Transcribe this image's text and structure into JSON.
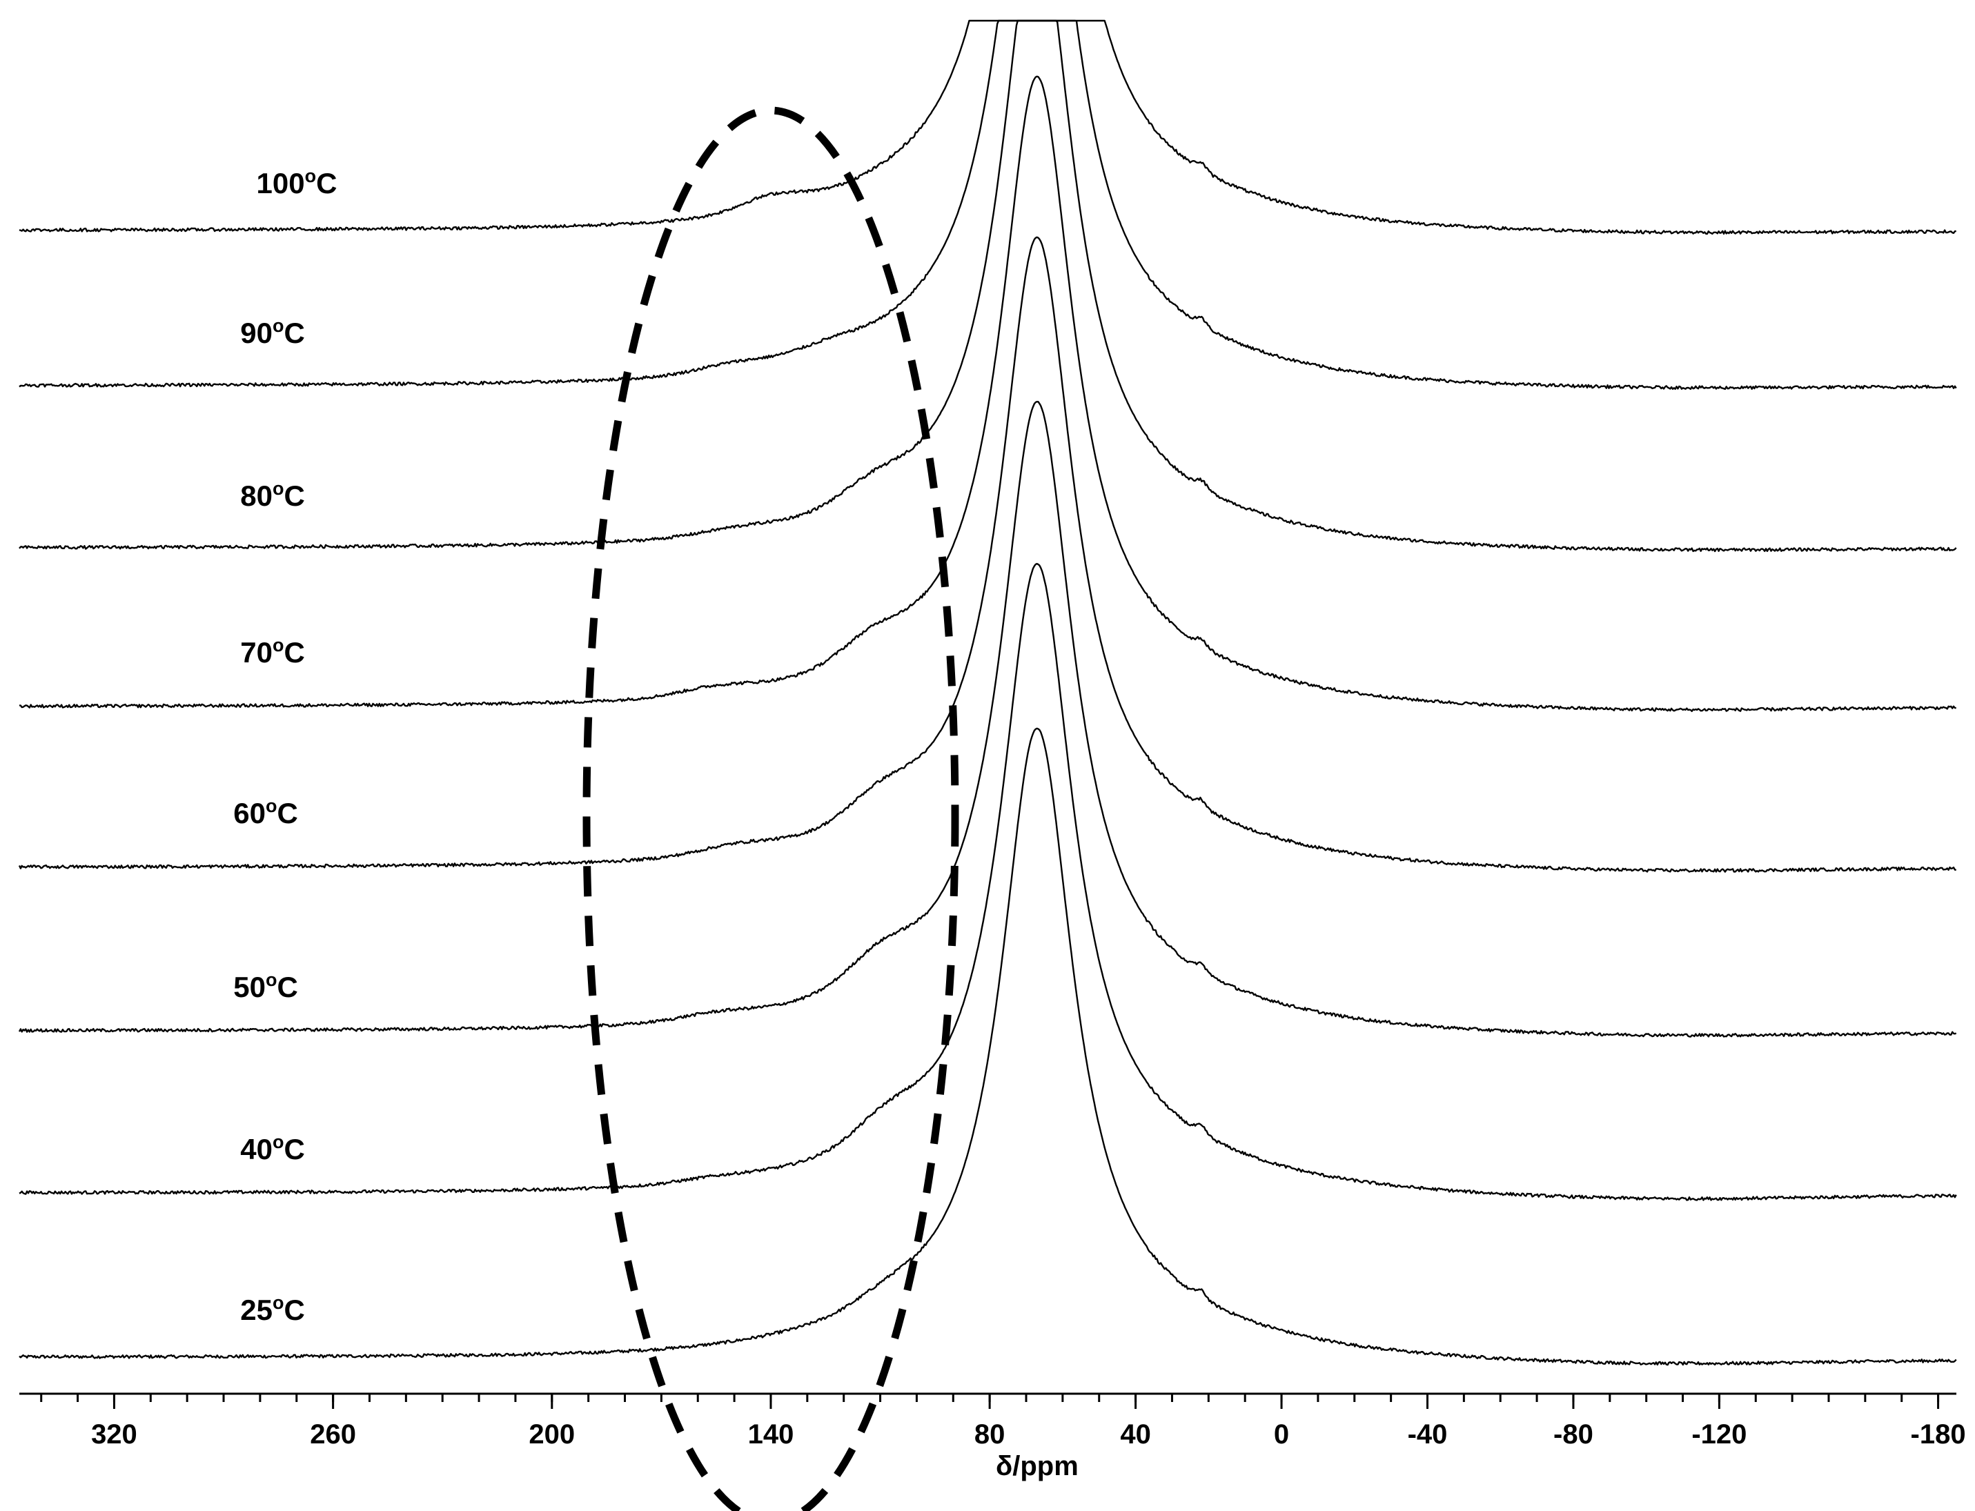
{
  "chart_data": {
    "type": "line",
    "title": "",
    "xlabel": "δ/ppm",
    "ylabel": "",
    "xlim": [
      346,
      -185
    ],
    "x_reversed": true,
    "grid": false,
    "x_ticks": [
      320,
      260,
      200,
      140,
      80,
      40,
      0,
      -40,
      -80,
      -120,
      -180
    ],
    "x_tick_labels": [
      "320",
      "260",
      "200",
      "140",
      "80",
      "40",
      "0",
      "-40",
      "-80",
      "-120",
      "-180"
    ],
    "x_minor_step": 10,
    "series": [
      {
        "name": "25°C",
        "label_value": "25",
        "label_unit": "C",
        "peak_ppm": 67,
        "peak_width_ppm": 12,
        "peak_height": 855,
        "shoulder_ppm": 108,
        "shoulder_height": 14,
        "low_field_ppm": 155,
        "low_field_height": 0,
        "baseline_left": 0,
        "baseline_right": -5,
        "trough": -8
      },
      {
        "name": "40°C",
        "label_value": "40",
        "label_unit": "C",
        "peak_ppm": 67,
        "peak_width_ppm": 12,
        "peak_height": 855,
        "shoulder_ppm": 108,
        "shoulder_height": 30,
        "low_field_ppm": 155,
        "low_field_height": 5,
        "baseline_left": 0,
        "baseline_right": -4,
        "trough": -8
      },
      {
        "name": "50°C",
        "label_value": "50",
        "label_unit": "C",
        "peak_ppm": 67,
        "peak_width_ppm": 12,
        "peak_height": 855,
        "shoulder_ppm": 110,
        "shoulder_height": 35,
        "low_field_ppm": 155,
        "low_field_height": 8,
        "baseline_left": 0,
        "baseline_right": -4,
        "trough": -6
      },
      {
        "name": "60°C",
        "label_value": "60",
        "label_unit": "C",
        "peak_ppm": 67,
        "peak_width_ppm": 12,
        "peak_height": 855,
        "shoulder_ppm": 110,
        "shoulder_height": 30,
        "low_field_ppm": 150,
        "low_field_height": 10,
        "baseline_left": 0,
        "baseline_right": -2,
        "trough": -6
      },
      {
        "name": "70°C",
        "label_value": "70",
        "label_unit": "C",
        "peak_ppm": 67,
        "peak_width_ppm": 12,
        "peak_height": 855,
        "shoulder_ppm": 112,
        "shoulder_height": 28,
        "low_field_ppm": 155,
        "low_field_height": 10,
        "baseline_left": 0,
        "baseline_right": -2,
        "trough": -6
      },
      {
        "name": "80°C",
        "label_value": "80",
        "label_unit": "C",
        "peak_ppm": 67,
        "peak_width_ppm": 12,
        "peak_height": 855,
        "shoulder_ppm": 112,
        "shoulder_height": 22,
        "low_field_ppm": 150,
        "low_field_height": 6,
        "baseline_left": 0,
        "baseline_right": -2,
        "trough": -4
      },
      {
        "name": "90°C",
        "label_value": "90",
        "label_unit": "C",
        "peak_ppm": 67,
        "peak_width_ppm": 12,
        "peak_height": 855,
        "shoulder_ppm": 125,
        "shoulder_height": 10,
        "low_field_ppm": 150,
        "low_field_height": 10,
        "baseline_left": 0,
        "baseline_right": -2,
        "trough": -4
      },
      {
        "name": "100°C",
        "label_value": "100",
        "label_unit": "C",
        "peak_ppm": 67,
        "peak_width_ppm": 12,
        "peak_height": 855,
        "shoulder_ppm": 140,
        "shoulder_height": 18,
        "low_field_ppm": 140,
        "low_field_height": 0,
        "baseline_left": 0,
        "baseline_right": -2,
        "trough": -4
      }
    ],
    "annotation": {
      "type": "dashed-ellipse",
      "center_ppm": 140,
      "range_ppm": [
        188,
        87
      ],
      "description": "highlighted region"
    }
  }
}
